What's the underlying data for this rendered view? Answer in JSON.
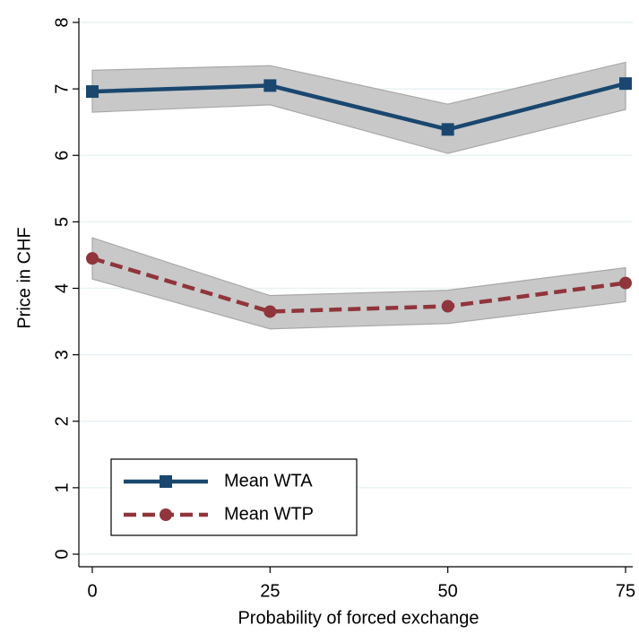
{
  "chart_data": {
    "type": "line",
    "x_label": "Probability of forced exchange",
    "y_label": "Price in CHF",
    "x": [
      0,
      25,
      50,
      75
    ],
    "series": [
      {
        "name": "Mean WTA",
        "color": "#1a476f",
        "marker": "square",
        "dash": "solid",
        "values": [
          6.96,
          7.05,
          6.39,
          7.08
        ],
        "lower": [
          6.65,
          6.76,
          6.03,
          6.69
        ],
        "upper": [
          7.28,
          7.35,
          6.77,
          7.4
        ]
      },
      {
        "name": "Mean WTP",
        "color": "#90353b",
        "marker": "circle",
        "dash": "dashed",
        "values": [
          4.45,
          3.65,
          3.73,
          4.08
        ],
        "lower": [
          4.14,
          3.39,
          3.47,
          3.8
        ],
        "upper": [
          4.76,
          3.89,
          3.97,
          4.31
        ]
      }
    ],
    "band_color": "#c8c8c8",
    "xlim": [
      0,
      75
    ],
    "xticks": [
      0,
      25,
      50,
      75
    ],
    "ylim": [
      0,
      8
    ],
    "yticks": [
      0,
      1,
      2,
      3,
      4,
      5,
      6,
      7,
      8
    ],
    "grid": true,
    "legend_position": "lower left"
  }
}
